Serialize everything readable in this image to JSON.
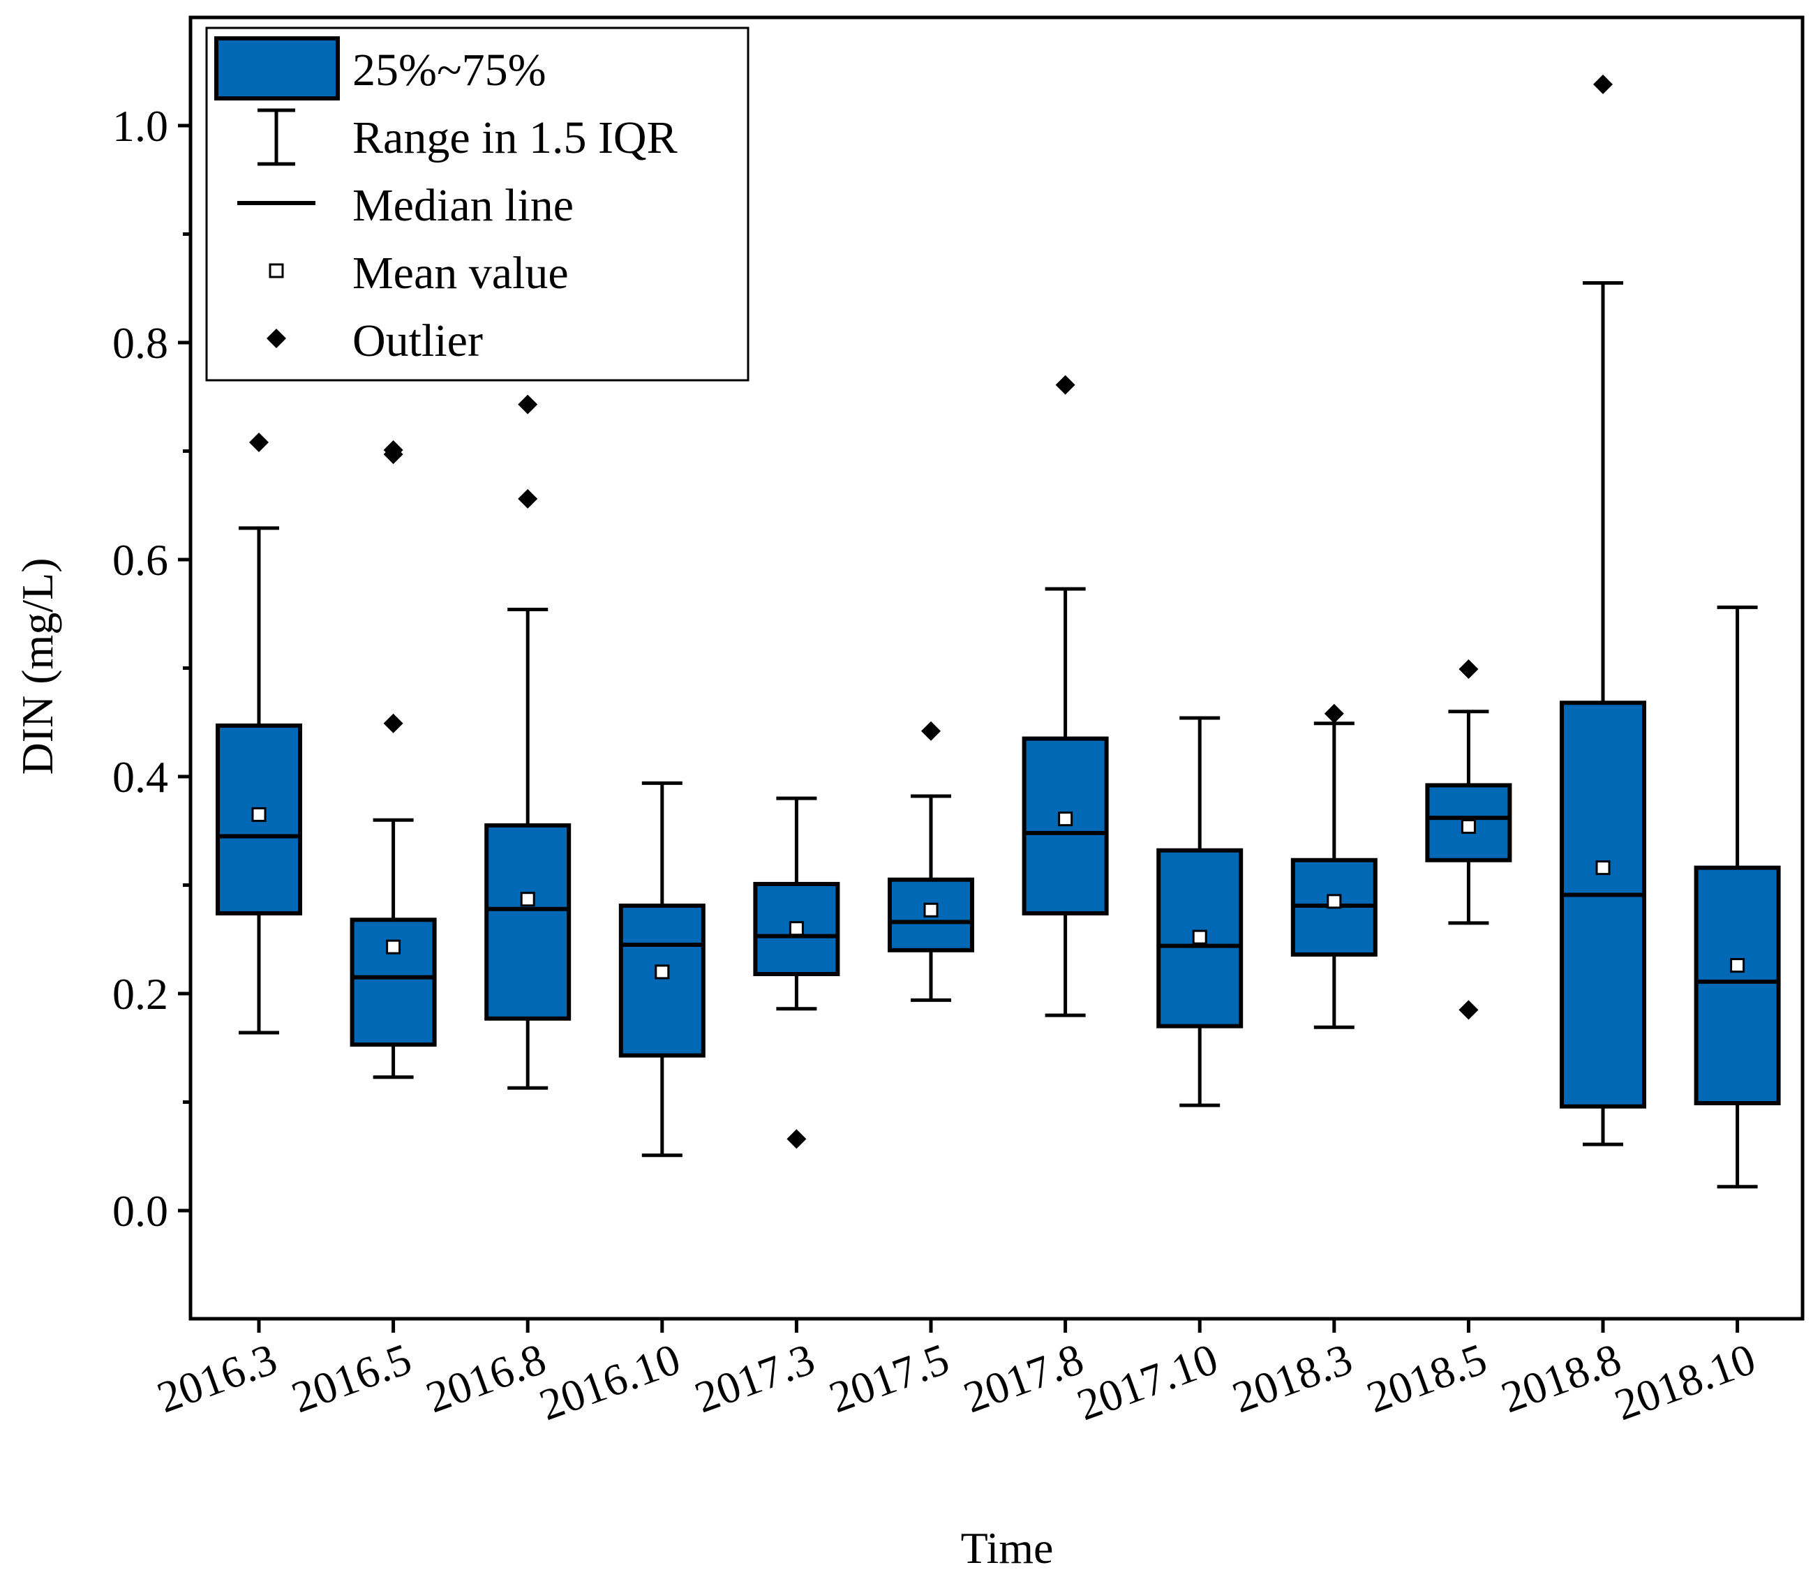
{
  "chart_data": {
    "type": "box",
    "xlabel": "Time",
    "ylabel": "DIN (mg/L)",
    "ylim": [
      -0.1,
      1.1
    ],
    "yticks": [
      0.0,
      0.2,
      0.4,
      0.6,
      0.8,
      1.0
    ],
    "ytick_labels": [
      "0.0",
      "0.2",
      "0.4",
      "0.6",
      "0.8",
      "1.0"
    ],
    "box_color": "#0068b4",
    "legend_position": "top-left",
    "legend": [
      {
        "label": "25%~75%",
        "symbol": "box"
      },
      {
        "label": "Range in 1.5 IQR",
        "symbol": "whisker"
      },
      {
        "label": "Median line",
        "symbol": "median"
      },
      {
        "label": "Mean value",
        "symbol": "mean"
      },
      {
        "label": "Outlier",
        "symbol": "outlier"
      }
    ],
    "categories": [
      "2016.3",
      "2016.5",
      "2016.8",
      "2016.10",
      "2017.3",
      "2017.5",
      "2017.8",
      "2017.10",
      "2018.3",
      "2018.5",
      "2018.8",
      "2018.10"
    ],
    "boxes": [
      {
        "whisker_low": 0.164,
        "q1": 0.274,
        "median": 0.345,
        "q3": 0.447,
        "whisker_high": 0.629,
        "mean": 0.365,
        "outliers": [
          0.708
        ]
      },
      {
        "whisker_low": 0.123,
        "q1": 0.153,
        "median": 0.215,
        "q3": 0.268,
        "whisker_high": 0.36,
        "mean": 0.243,
        "outliers": [
          0.449,
          0.697,
          0.701
        ]
      },
      {
        "whisker_low": 0.113,
        "q1": 0.177,
        "median": 0.278,
        "q3": 0.355,
        "whisker_high": 0.554,
        "mean": 0.287,
        "outliers": [
          0.656,
          0.743
        ]
      },
      {
        "whisker_low": 0.051,
        "q1": 0.143,
        "median": 0.245,
        "q3": 0.281,
        "whisker_high": 0.394,
        "mean": 0.22,
        "outliers": []
      },
      {
        "whisker_low": 0.186,
        "q1": 0.218,
        "median": 0.253,
        "q3": 0.301,
        "whisker_high": 0.38,
        "mean": 0.26,
        "outliers": [
          0.066
        ]
      },
      {
        "whisker_low": 0.194,
        "q1": 0.24,
        "median": 0.266,
        "q3": 0.305,
        "whisker_high": 0.382,
        "mean": 0.277,
        "outliers": [
          0.442
        ]
      },
      {
        "whisker_low": 0.18,
        "q1": 0.274,
        "median": 0.348,
        "q3": 0.435,
        "whisker_high": 0.573,
        "mean": 0.361,
        "outliers": [
          0.761
        ]
      },
      {
        "whisker_low": 0.097,
        "q1": 0.17,
        "median": 0.244,
        "q3": 0.332,
        "whisker_high": 0.454,
        "mean": 0.252,
        "outliers": []
      },
      {
        "whisker_low": 0.169,
        "q1": 0.236,
        "median": 0.281,
        "q3": 0.323,
        "whisker_high": 0.449,
        "mean": 0.285,
        "outliers": [
          0.458
        ]
      },
      {
        "whisker_low": 0.265,
        "q1": 0.323,
        "median": 0.362,
        "q3": 0.392,
        "whisker_high": 0.46,
        "mean": 0.354,
        "outliers": [
          0.499,
          0.185
        ]
      },
      {
        "whisker_low": 0.061,
        "q1": 0.096,
        "median": 0.291,
        "q3": 0.468,
        "whisker_high": 0.855,
        "mean": 0.316,
        "outliers": [
          1.038
        ]
      },
      {
        "whisker_low": 0.022,
        "q1": 0.099,
        "median": 0.211,
        "q3": 0.316,
        "whisker_high": 0.556,
        "mean": 0.226,
        "outliers": []
      }
    ]
  }
}
